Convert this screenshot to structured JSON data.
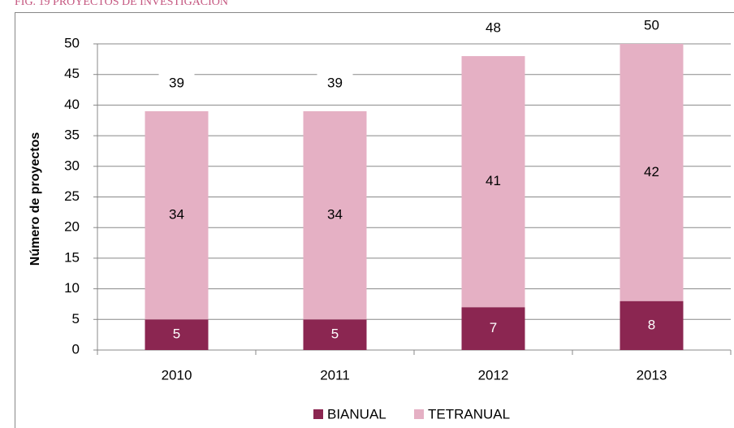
{
  "chart_data": {
    "type": "stacked_bar",
    "title": "FIG. 19 PROYECTOS DE INVESTIGACIÓN",
    "y_label": "Número de proyectos",
    "categories": [
      "2010",
      "2011",
      "2012",
      "2013"
    ],
    "series": [
      {
        "name": "BIANUAL",
        "color": "#8b2651",
        "values": [
          5,
          5,
          7,
          8
        ]
      },
      {
        "name": "TETRANUAL",
        "color": "#e5b0c4",
        "values": [
          34,
          34,
          41,
          42
        ]
      }
    ],
    "totals": [
      39,
      39,
      48,
      50
    ],
    "ylim": [
      0,
      50
    ],
    "yticks": [
      0,
      5,
      10,
      15,
      20,
      25,
      30,
      35,
      40,
      45,
      50
    ],
    "grid": true,
    "legend": "bottom"
  }
}
